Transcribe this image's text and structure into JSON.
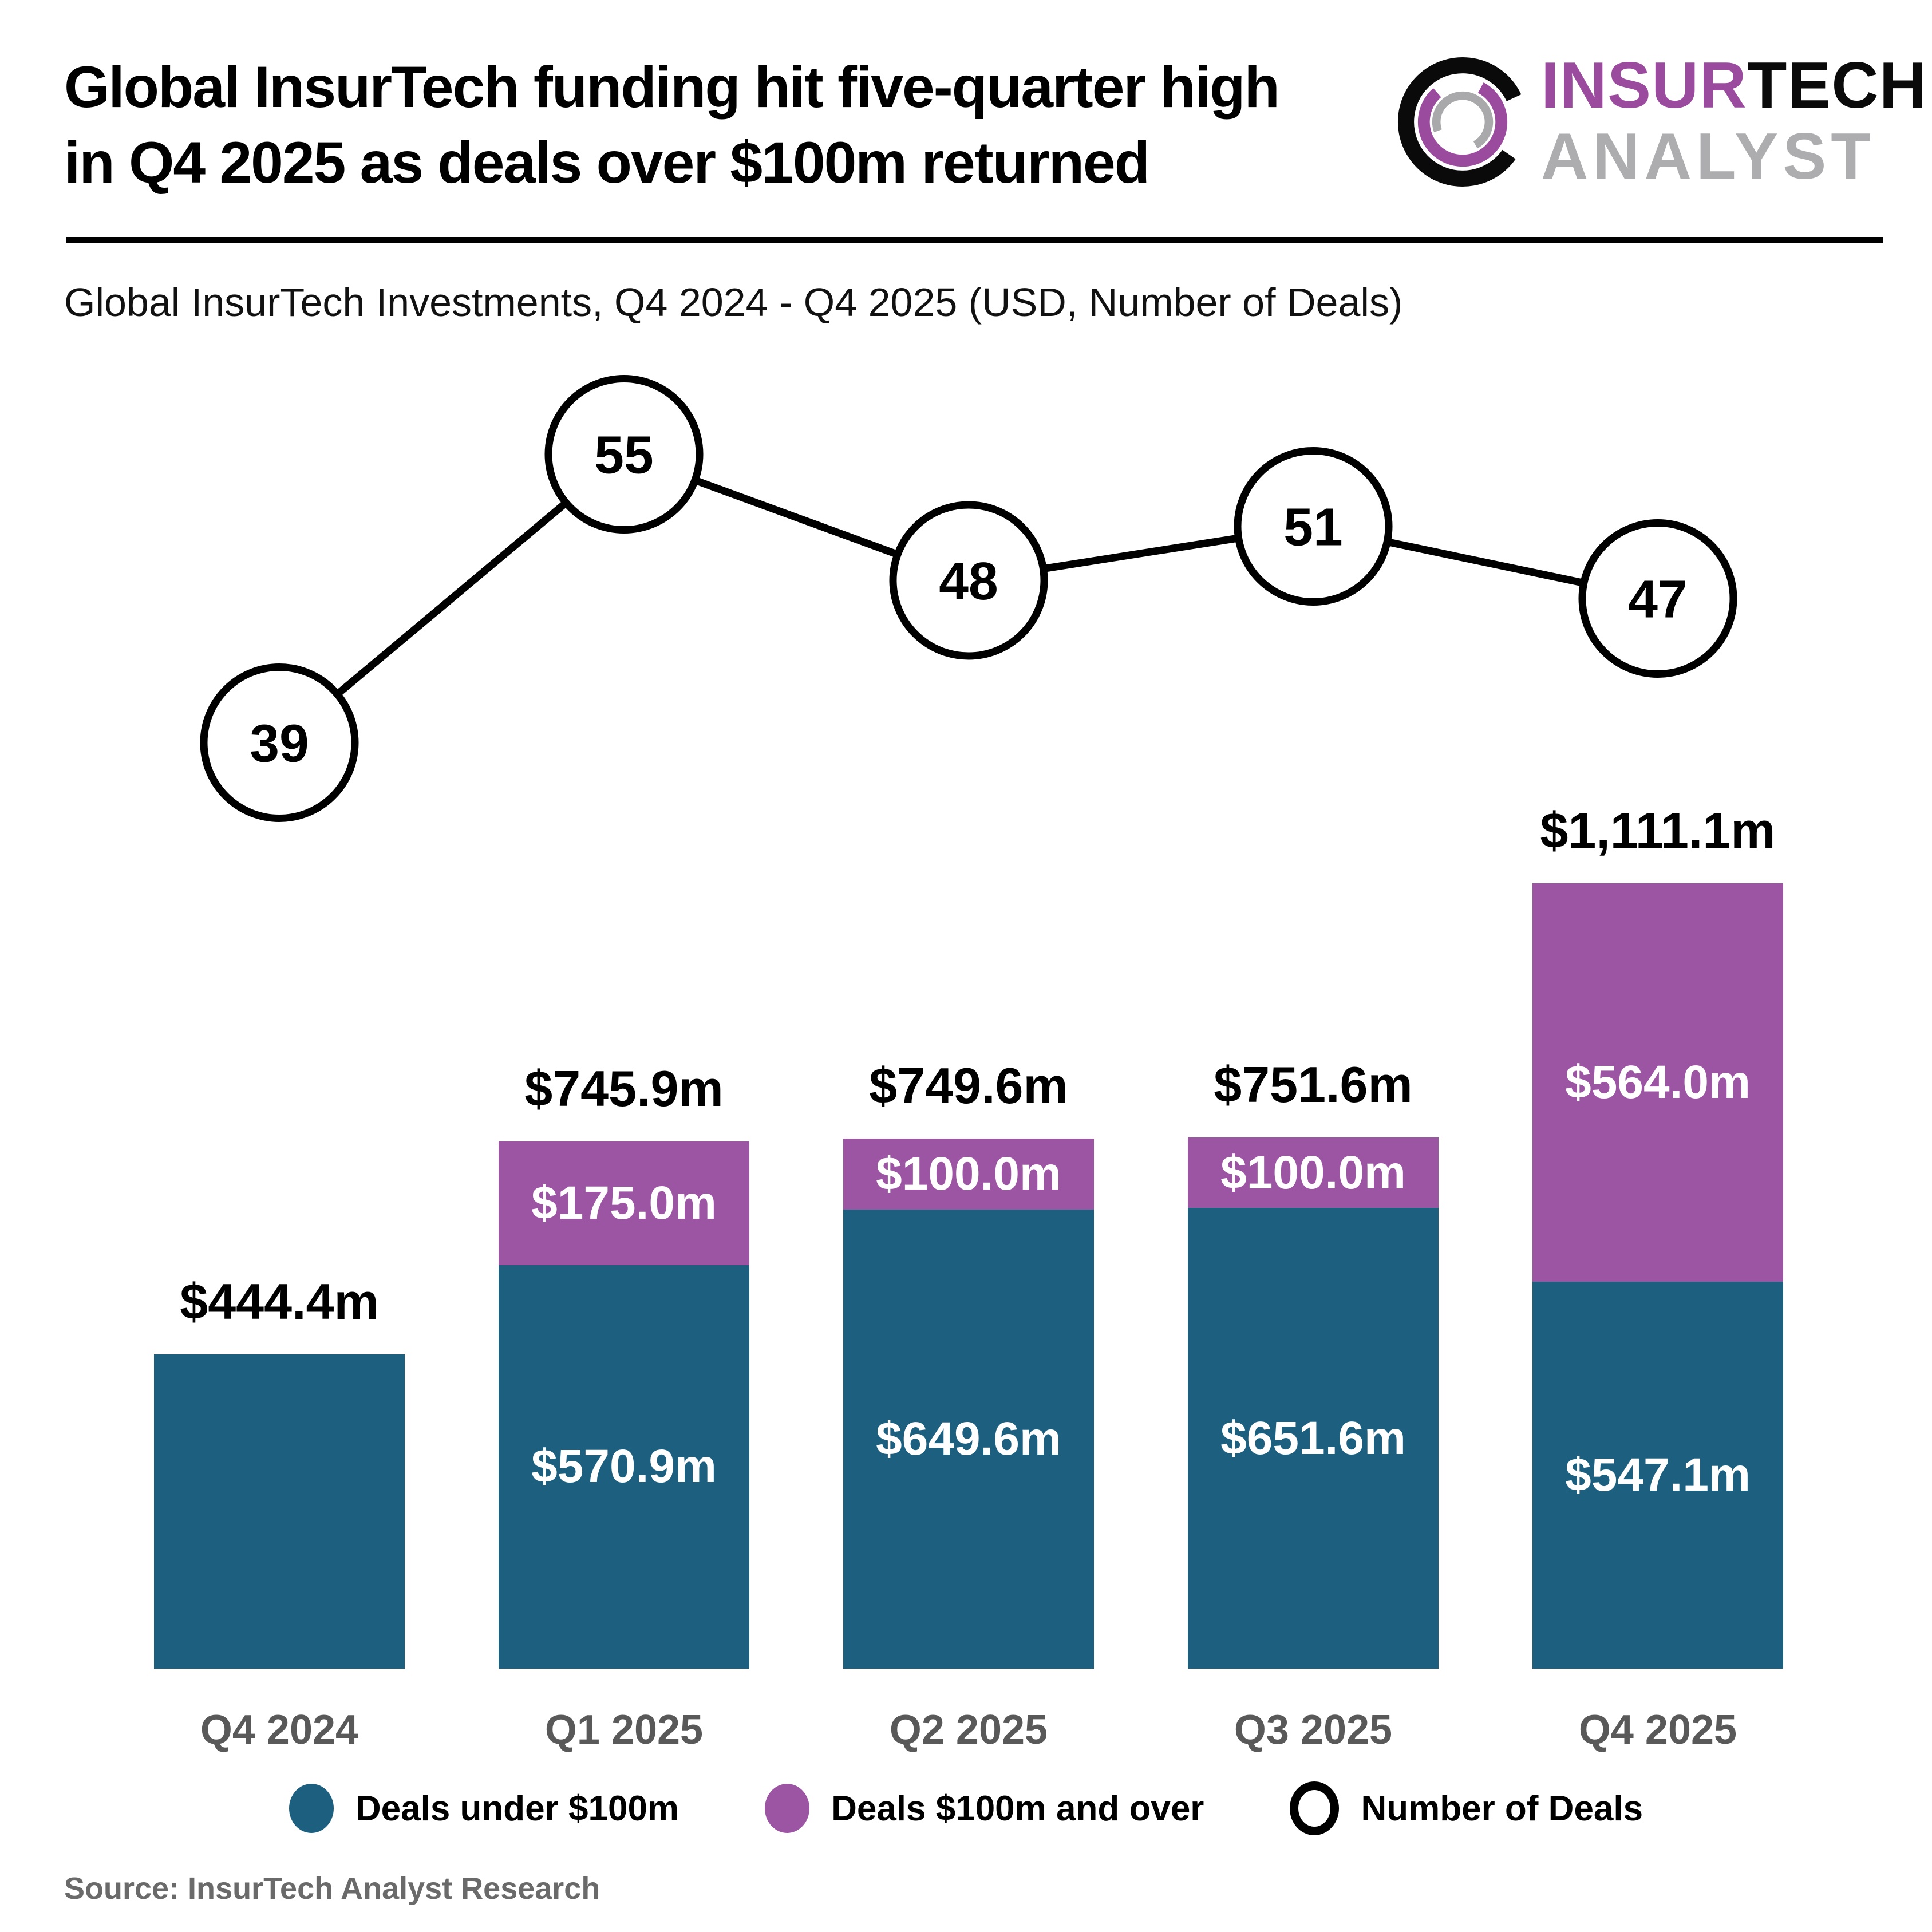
{
  "header": {
    "title": "Global InsurTech funding hit five-quarter high\nin Q4 2025 as deals over $100m returned",
    "logo": {
      "line1_purple": "INSUR",
      "line1_black": "TECH",
      "line2": "ANALYST"
    }
  },
  "chart_data": {
    "type": "bar",
    "stacked": true,
    "title": "Global InsurTech Investments, Q4 2024 - Q4 2025 (USD, Number of Deals)",
    "categories": [
      "Q4 2024",
      "Q1 2025",
      "Q2 2025",
      "Q3 2025",
      "Q4 2025"
    ],
    "series": [
      {
        "name": "Deals under $100m",
        "color": "#1C5F7F",
        "values": [
          444.4,
          570.9,
          649.6,
          651.6,
          547.1
        ],
        "labels": [
          "",
          "$570.9m",
          "$649.6m",
          "$651.6m",
          "$547.1m"
        ]
      },
      {
        "name": "Deals $100m and over",
        "color": "#9C55A3",
        "values": [
          0,
          175.0,
          100.0,
          100.0,
          564.0
        ],
        "labels": [
          "",
          "$175.0m",
          "$100.0m",
          "$100.0m",
          "$564.0m"
        ]
      }
    ],
    "totals": [
      444.4,
      745.9,
      749.6,
      751.6,
      1111.1
    ],
    "total_labels": [
      "$444.4m",
      "$745.9m",
      "$749.6m",
      "$751.6m",
      "$1,111.1m"
    ],
    "line_series": {
      "name": "Number of Deals",
      "values": [
        39,
        55,
        48,
        51,
        47
      ]
    },
    "ylim": [
      0,
      1200
    ],
    "unit": "USD millions",
    "legend_position": "bottom",
    "grid": false
  },
  "legend": {
    "items": [
      {
        "label": "Deals under $100m",
        "color": "#1C5F7F",
        "type": "dot"
      },
      {
        "label": "Deals $100m and over",
        "color": "#9C55A3",
        "type": "dot"
      },
      {
        "label": "Number of Deals",
        "color": "#000000",
        "type": "ring"
      }
    ]
  },
  "source": "Source: InsurTech Analyst Research",
  "colors": {
    "under_100m": "#1C5F7F",
    "over_100m": "#9C55A3",
    "axis_label": "#595959",
    "source_text": "#6A6A6A",
    "logo_purple": "#9B4B9E",
    "logo_gray": "#ADADB0",
    "line_stroke": "#000000"
  }
}
